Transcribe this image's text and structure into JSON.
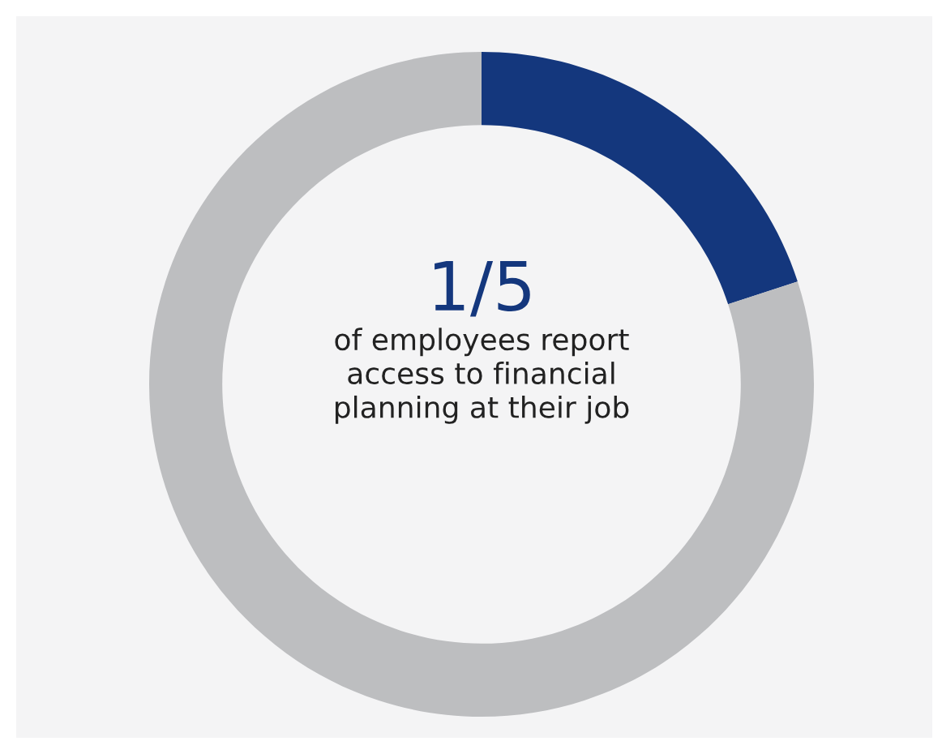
{
  "chart_data": {
    "type": "donut",
    "categories": [
      null,
      null
    ],
    "values": [
      20,
      80
    ],
    "colors": [
      "#14377d",
      "#bdbec0"
    ],
    "annotations": [
      "1/5",
      "of employees report\naccess to financial\nplanning at their job"
    ],
    "legend": false
  }
}
